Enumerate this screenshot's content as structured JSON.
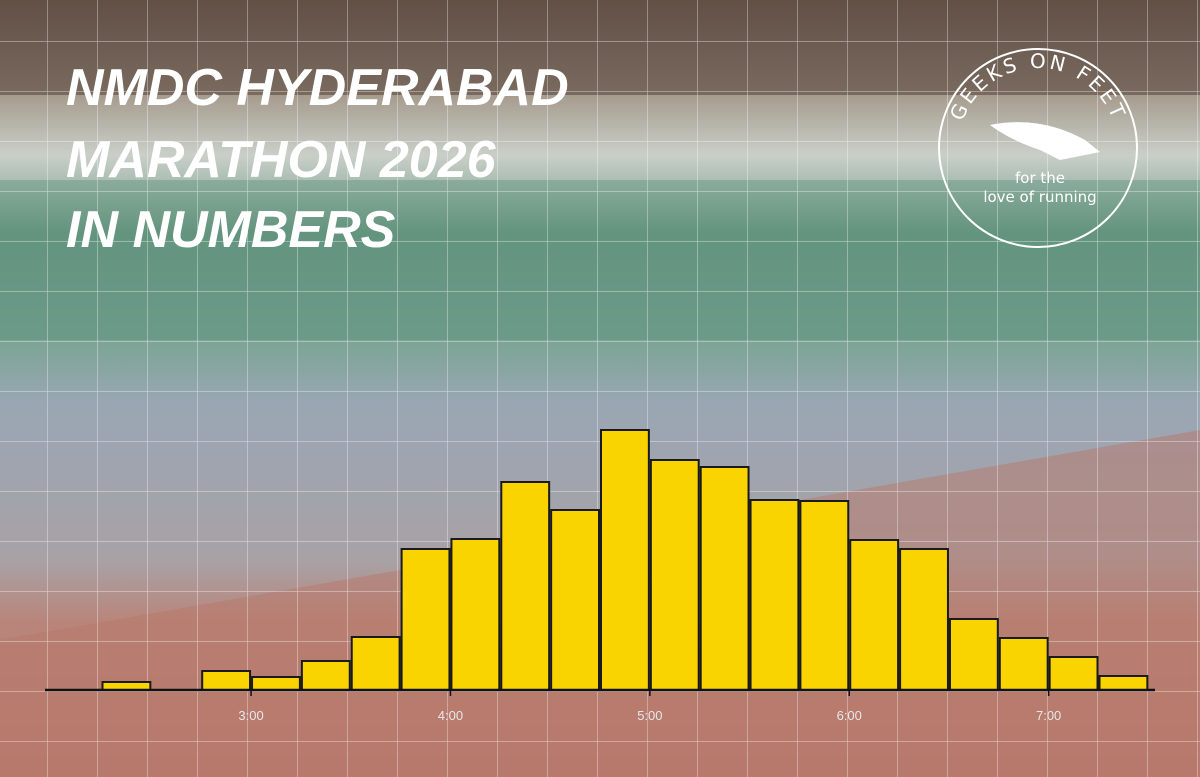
{
  "chart_data": {
    "type": "histogram",
    "title_lines": [
      "NMDC HYDERABAD",
      "MARATHON 2026",
      "IN NUMBERS"
    ],
    "bins": [
      135,
      150,
      165,
      180,
      195,
      210,
      225,
      240,
      255,
      270,
      285,
      300,
      315,
      330,
      345,
      360,
      375,
      390,
      405,
      420,
      435,
      450
    ],
    "counts": [
      8,
      0,
      19,
      13,
      29,
      53,
      141,
      151,
      208,
      180,
      260,
      230,
      223,
      190,
      189,
      150,
      141,
      71,
      52,
      33,
      14
    ],
    "color": "#f9d400",
    "xlim": [
      118,
      452
    ],
    "xticks": [
      {
        "value": 180,
        "label": "3:00"
      },
      {
        "value": 240,
        "label": "4:00"
      },
      {
        "value": 300,
        "label": "5:00"
      },
      {
        "value": 360,
        "label": "6:00"
      },
      {
        "value": 420,
        "label": "7:00"
      }
    ],
    "ylim": [
      0,
      300
    ]
  },
  "logo": {
    "arc_text": "GEEKS ON FEET",
    "line1": "for the",
    "line2": "love of running"
  }
}
